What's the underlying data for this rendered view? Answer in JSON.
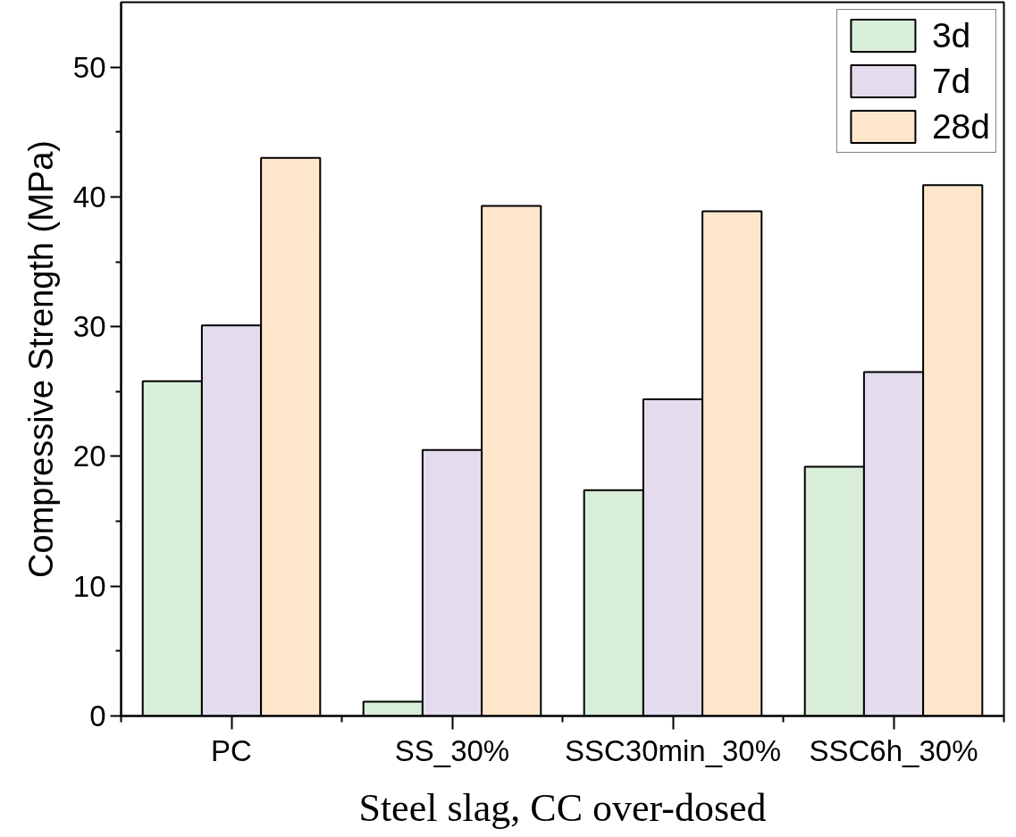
{
  "chart_data": {
    "type": "bar",
    "categories": [
      "PC",
      "SS_30%",
      "SSC30min_30%",
      "SSC6h_30%"
    ],
    "series": [
      {
        "name": "3d",
        "color": "#d8eed8",
        "values": [
          25.8,
          1.1,
          17.4,
          19.2
        ]
      },
      {
        "name": "7d",
        "color": "#e4dcee",
        "values": [
          30.1,
          20.5,
          24.4,
          26.5
        ]
      },
      {
        "name": "28d",
        "color": "#fde6cc",
        "values": [
          43.0,
          39.3,
          38.9,
          40.9
        ]
      }
    ],
    "xlabel": "Steel slag, CC over-dosed",
    "ylabel": "Compressive Strength (MPa)",
    "ylim": [
      0,
      55
    ],
    "yticks": [
      0,
      10,
      20,
      30,
      40,
      50
    ],
    "legend": "top right"
  }
}
